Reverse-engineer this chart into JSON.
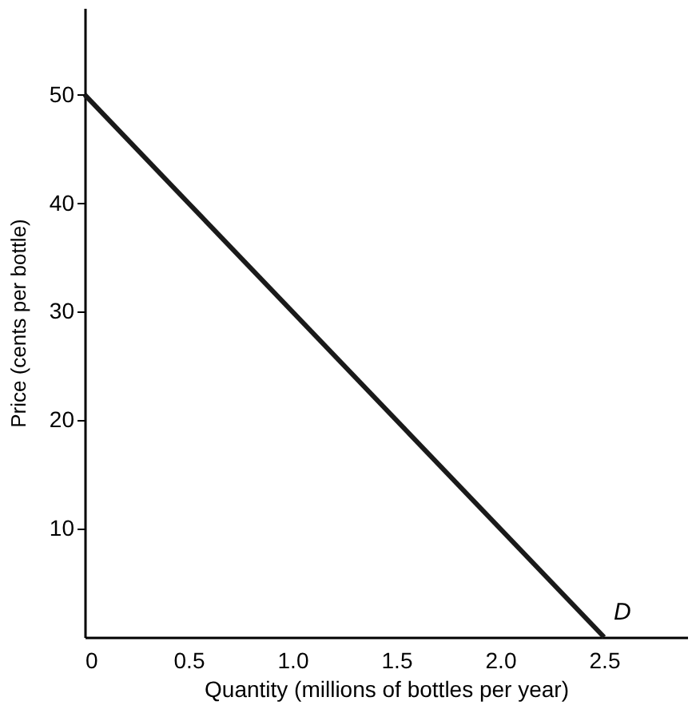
{
  "chart_data": {
    "type": "line",
    "xlabel": "Quantity (millions of bottles per year)",
    "ylabel": "Price (cents per bottle)",
    "x": [
      0,
      2.5
    ],
    "series": [
      {
        "color": "#1a1a1a",
        "values": [
          50,
          0
        ]
      }
    ],
    "xlim": [
      0,
      2.9
    ],
    "ylim": [
      0,
      58
    ],
    "xticks": [
      0,
      0.5,
      {
        "value": 1,
        "label": "1.0"
      },
      1.5,
      {
        "value": 2,
        "label": "2.0"
      },
      2.5
    ],
    "yticks": [
      10,
      20,
      30,
      40,
      50
    ],
    "annotations": [
      {
        "text": "D",
        "x": 2.5,
        "y": 0
      }
    ],
    "grid": false,
    "marker": "none",
    "line_style": "solid"
  }
}
